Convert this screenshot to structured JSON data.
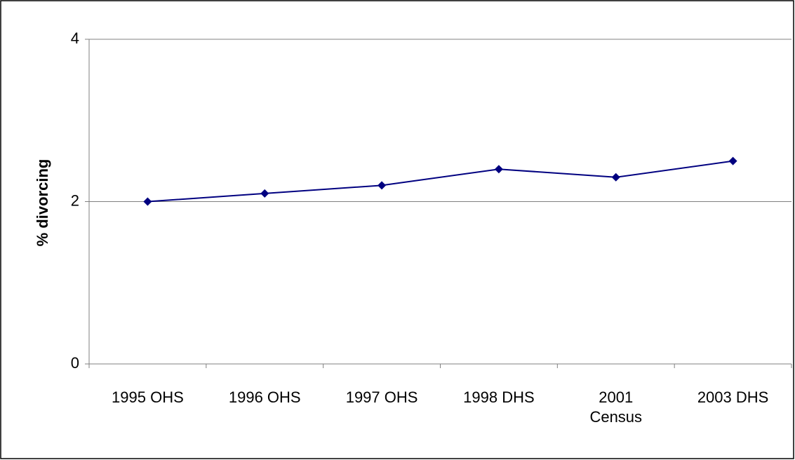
{
  "chart_data": {
    "type": "line",
    "y_label": "% divorcing",
    "categories": [
      "1995 OHS",
      "1996 OHS",
      "1997 OHS",
      "1998 DHS",
      "2001\nCensus",
      "2003 DHS"
    ],
    "series": [
      {
        "name": "% divorcing",
        "color": "#000080",
        "values": [
          2.0,
          2.1,
          2.2,
          2.4,
          2.3,
          2.5
        ]
      }
    ],
    "ylim": [
      0,
      4
    ],
    "yticks": [
      0,
      2,
      4
    ],
    "grid": true
  }
}
